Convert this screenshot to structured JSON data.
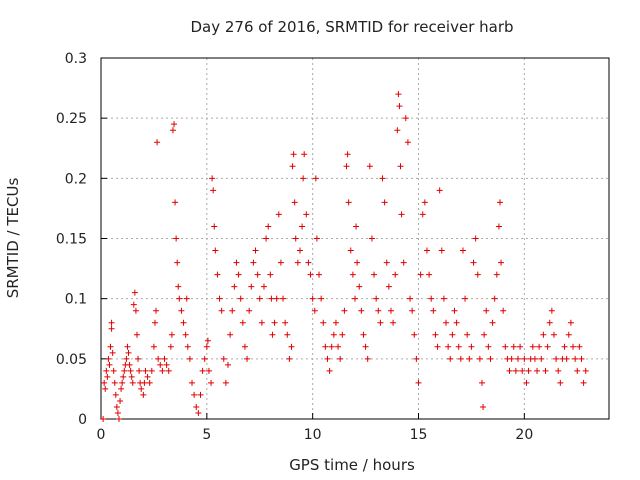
{
  "chart_data": {
    "type": "scatter",
    "title": "Day 276 of 2016, SRMTID for receiver harb",
    "xlabel": "GPS time / hours",
    "ylabel": "SRMTID / TECUs",
    "xlim": [
      0,
      24
    ],
    "ylim": [
      0,
      0.3
    ],
    "x_ticks": [
      0,
      5,
      10,
      15,
      20
    ],
    "y_ticks": [
      0,
      0.05,
      0.1,
      0.15,
      0.2,
      0.25,
      0.3
    ],
    "x_tick_labels": [
      "0",
      "5",
      "10",
      "15",
      "20"
    ],
    "y_tick_labels": [
      "0",
      "0.05",
      "0.1",
      "0.15",
      "0.2",
      "0.25",
      "0.3"
    ],
    "grid": true,
    "marker": "+",
    "marker_color": "#e00000",
    "series": [
      {
        "name": "SRMTID",
        "points": [
          [
            0.1,
            0.0
          ],
          [
            0.15,
            0.03
          ],
          [
            0.2,
            0.025
          ],
          [
            0.25,
            0.04
          ],
          [
            0.3,
            0.035
          ],
          [
            0.35,
            0.05
          ],
          [
            0.4,
            0.045
          ],
          [
            0.45,
            0.06
          ],
          [
            0.5,
            0.075
          ],
          [
            0.5,
            0.08
          ],
          [
            0.55,
            0.055
          ],
          [
            0.6,
            0.04
          ],
          [
            0.65,
            0.03
          ],
          [
            0.7,
            0.02
          ],
          [
            0.75,
            0.01
          ],
          [
            0.8,
            0.005
          ],
          [
            0.85,
            0.0
          ],
          [
            0.9,
            0.015
          ],
          [
            0.95,
            0.025
          ],
          [
            1.0,
            0.03
          ],
          [
            1.05,
            0.035
          ],
          [
            1.1,
            0.04
          ],
          [
            1.15,
            0.045
          ],
          [
            1.2,
            0.05
          ],
          [
            1.25,
            0.06
          ],
          [
            1.3,
            0.055
          ],
          [
            1.35,
            0.045
          ],
          [
            1.4,
            0.04
          ],
          [
            1.45,
            0.035
          ],
          [
            1.5,
            0.03
          ],
          [
            1.55,
            0.095
          ],
          [
            1.6,
            0.105
          ],
          [
            1.65,
            0.09
          ],
          [
            1.7,
            0.07
          ],
          [
            1.75,
            0.05
          ],
          [
            1.8,
            0.04
          ],
          [
            1.85,
            0.03
          ],
          [
            1.9,
            0.025
          ],
          [
            2.0,
            0.02
          ],
          [
            2.05,
            0.03
          ],
          [
            2.1,
            0.04
          ],
          [
            2.2,
            0.035
          ],
          [
            2.3,
            0.03
          ],
          [
            2.4,
            0.04
          ],
          [
            2.5,
            0.06
          ],
          [
            2.55,
            0.08
          ],
          [
            2.6,
            0.09
          ],
          [
            2.65,
            0.23
          ],
          [
            2.7,
            0.05
          ],
          [
            2.8,
            0.045
          ],
          [
            2.9,
            0.04
          ],
          [
            3.0,
            0.05
          ],
          [
            3.1,
            0.045
          ],
          [
            3.2,
            0.04
          ],
          [
            3.3,
            0.06
          ],
          [
            3.35,
            0.07
          ],
          [
            3.4,
            0.24
          ],
          [
            3.45,
            0.245
          ],
          [
            3.5,
            0.18
          ],
          [
            3.55,
            0.15
          ],
          [
            3.6,
            0.13
          ],
          [
            3.65,
            0.11
          ],
          [
            3.7,
            0.1
          ],
          [
            3.8,
            0.09
          ],
          [
            3.9,
            0.08
          ],
          [
            4.0,
            0.07
          ],
          [
            4.05,
            0.1
          ],
          [
            4.1,
            0.06
          ],
          [
            4.2,
            0.05
          ],
          [
            4.3,
            0.03
          ],
          [
            4.4,
            0.02
          ],
          [
            4.5,
            0.01
          ],
          [
            4.6,
            0.005
          ],
          [
            4.7,
            0.02
          ],
          [
            4.8,
            0.04
          ],
          [
            4.9,
            0.05
          ],
          [
            5.0,
            0.06
          ],
          [
            5.05,
            0.065
          ],
          [
            5.1,
            0.04
          ],
          [
            5.2,
            0.03
          ],
          [
            5.25,
            0.2
          ],
          [
            5.3,
            0.19
          ],
          [
            5.35,
            0.16
          ],
          [
            5.4,
            0.14
          ],
          [
            5.5,
            0.12
          ],
          [
            5.6,
            0.1
          ],
          [
            5.7,
            0.09
          ],
          [
            5.8,
            0.05
          ],
          [
            5.9,
            0.03
          ],
          [
            6.0,
            0.045
          ],
          [
            6.1,
            0.07
          ],
          [
            6.2,
            0.09
          ],
          [
            6.3,
            0.11
          ],
          [
            6.4,
            0.13
          ],
          [
            6.5,
            0.12
          ],
          [
            6.6,
            0.1
          ],
          [
            6.7,
            0.08
          ],
          [
            6.8,
            0.06
          ],
          [
            6.9,
            0.05
          ],
          [
            7.0,
            0.09
          ],
          [
            7.1,
            0.11
          ],
          [
            7.2,
            0.13
          ],
          [
            7.3,
            0.14
          ],
          [
            7.4,
            0.12
          ],
          [
            7.5,
            0.1
          ],
          [
            7.6,
            0.08
          ],
          [
            7.7,
            0.11
          ],
          [
            7.8,
            0.15
          ],
          [
            7.9,
            0.16
          ],
          [
            8.0,
            0.12
          ],
          [
            8.05,
            0.1
          ],
          [
            8.1,
            0.07
          ],
          [
            8.2,
            0.08
          ],
          [
            8.3,
            0.1
          ],
          [
            8.4,
            0.17
          ],
          [
            8.5,
            0.13
          ],
          [
            8.6,
            0.1
          ],
          [
            8.7,
            0.08
          ],
          [
            8.8,
            0.07
          ],
          [
            8.9,
            0.05
          ],
          [
            9.0,
            0.06
          ],
          [
            9.05,
            0.21
          ],
          [
            9.1,
            0.22
          ],
          [
            9.15,
            0.18
          ],
          [
            9.2,
            0.15
          ],
          [
            9.3,
            0.13
          ],
          [
            9.4,
            0.14
          ],
          [
            9.5,
            0.16
          ],
          [
            9.55,
            0.2
          ],
          [
            9.6,
            0.22
          ],
          [
            9.7,
            0.17
          ],
          [
            9.8,
            0.13
          ],
          [
            9.9,
            0.12
          ],
          [
            10.0,
            0.1
          ],
          [
            10.1,
            0.09
          ],
          [
            10.15,
            0.2
          ],
          [
            10.2,
            0.15
          ],
          [
            10.3,
            0.12
          ],
          [
            10.4,
            0.1
          ],
          [
            10.5,
            0.08
          ],
          [
            10.6,
            0.06
          ],
          [
            10.7,
            0.05
          ],
          [
            10.8,
            0.04
          ],
          [
            10.9,
            0.06
          ],
          [
            11.0,
            0.07
          ],
          [
            11.1,
            0.08
          ],
          [
            11.2,
            0.06
          ],
          [
            11.3,
            0.05
          ],
          [
            11.4,
            0.07
          ],
          [
            11.5,
            0.09
          ],
          [
            11.6,
            0.21
          ],
          [
            11.65,
            0.22
          ],
          [
            11.7,
            0.18
          ],
          [
            11.8,
            0.14
          ],
          [
            11.9,
            0.12
          ],
          [
            12.0,
            0.1
          ],
          [
            12.05,
            0.16
          ],
          [
            12.1,
            0.13
          ],
          [
            12.2,
            0.11
          ],
          [
            12.3,
            0.09
          ],
          [
            12.4,
            0.07
          ],
          [
            12.5,
            0.06
          ],
          [
            12.6,
            0.05
          ],
          [
            12.7,
            0.21
          ],
          [
            12.8,
            0.15
          ],
          [
            12.9,
            0.12
          ],
          [
            13.0,
            0.1
          ],
          [
            13.1,
            0.09
          ],
          [
            13.2,
            0.08
          ],
          [
            13.3,
            0.2
          ],
          [
            13.4,
            0.18
          ],
          [
            13.5,
            0.13
          ],
          [
            13.6,
            0.11
          ],
          [
            13.7,
            0.09
          ],
          [
            13.8,
            0.08
          ],
          [
            13.9,
            0.12
          ],
          [
            14.0,
            0.24
          ],
          [
            14.05,
            0.27
          ],
          [
            14.1,
            0.26
          ],
          [
            14.15,
            0.21
          ],
          [
            14.2,
            0.17
          ],
          [
            14.3,
            0.13
          ],
          [
            14.4,
            0.25
          ],
          [
            14.5,
            0.23
          ],
          [
            14.6,
            0.1
          ],
          [
            14.7,
            0.09
          ],
          [
            14.8,
            0.07
          ],
          [
            14.9,
            0.05
          ],
          [
            15.0,
            0.03
          ],
          [
            15.1,
            0.12
          ],
          [
            15.2,
            0.17
          ],
          [
            15.3,
            0.18
          ],
          [
            15.4,
            0.14
          ],
          [
            15.5,
            0.12
          ],
          [
            15.6,
            0.1
          ],
          [
            15.7,
            0.09
          ],
          [
            15.8,
            0.07
          ],
          [
            15.9,
            0.06
          ],
          [
            16.0,
            0.19
          ],
          [
            16.1,
            0.14
          ],
          [
            16.2,
            0.1
          ],
          [
            16.3,
            0.08
          ],
          [
            16.4,
            0.06
          ],
          [
            16.5,
            0.05
          ],
          [
            16.6,
            0.07
          ],
          [
            16.7,
            0.09
          ],
          [
            16.8,
            0.08
          ],
          [
            16.9,
            0.06
          ],
          [
            17.0,
            0.05
          ],
          [
            17.1,
            0.14
          ],
          [
            17.2,
            0.1
          ],
          [
            17.3,
            0.07
          ],
          [
            17.4,
            0.05
          ],
          [
            17.5,
            0.06
          ],
          [
            17.6,
            0.13
          ],
          [
            17.7,
            0.15
          ],
          [
            17.8,
            0.12
          ],
          [
            17.9,
            0.05
          ],
          [
            18.0,
            0.03
          ],
          [
            18.05,
            0.01
          ],
          [
            18.1,
            0.07
          ],
          [
            18.2,
            0.09
          ],
          [
            18.3,
            0.06
          ],
          [
            18.4,
            0.05
          ],
          [
            18.5,
            0.08
          ],
          [
            18.6,
            0.1
          ],
          [
            18.7,
            0.12
          ],
          [
            18.8,
            0.16
          ],
          [
            18.85,
            0.18
          ],
          [
            18.9,
            0.13
          ],
          [
            19.0,
            0.09
          ],
          [
            19.1,
            0.06
          ],
          [
            19.2,
            0.05
          ],
          [
            19.3,
            0.04
          ],
          [
            19.4,
            0.05
          ],
          [
            19.5,
            0.06
          ],
          [
            19.6,
            0.04
          ],
          [
            19.7,
            0.05
          ],
          [
            19.8,
            0.06
          ],
          [
            19.9,
            0.04
          ],
          [
            20.0,
            0.05
          ],
          [
            20.1,
            0.03
          ],
          [
            20.2,
            0.04
          ],
          [
            20.3,
            0.05
          ],
          [
            20.4,
            0.06
          ],
          [
            20.5,
            0.05
          ],
          [
            20.6,
            0.04
          ],
          [
            20.7,
            0.06
          ],
          [
            20.8,
            0.05
          ],
          [
            20.9,
            0.07
          ],
          [
            21.0,
            0.04
          ],
          [
            21.1,
            0.06
          ],
          [
            21.2,
            0.08
          ],
          [
            21.3,
            0.09
          ],
          [
            21.4,
            0.07
          ],
          [
            21.5,
            0.05
          ],
          [
            21.6,
            0.04
          ],
          [
            21.7,
            0.03
          ],
          [
            21.8,
            0.05
          ],
          [
            21.9,
            0.06
          ],
          [
            22.0,
            0.05
          ],
          [
            22.1,
            0.07
          ],
          [
            22.2,
            0.08
          ],
          [
            22.3,
            0.06
          ],
          [
            22.4,
            0.05
          ],
          [
            22.5,
            0.04
          ],
          [
            22.6,
            0.06
          ],
          [
            22.7,
            0.05
          ],
          [
            22.8,
            0.03
          ],
          [
            22.9,
            0.04
          ]
        ]
      }
    ]
  }
}
